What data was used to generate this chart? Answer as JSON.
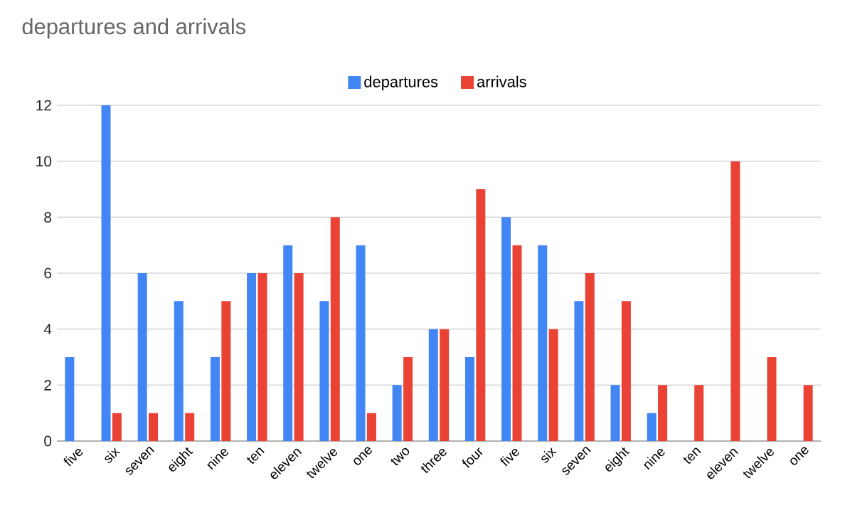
{
  "chart_data": {
    "type": "bar",
    "title": "departures and arrivals",
    "categories": [
      "five",
      "six",
      "seven",
      "eight",
      "nine",
      "ten",
      "eleven",
      "twelve",
      "one",
      "two",
      "three",
      "four",
      "five",
      "six",
      "seven",
      "eight",
      "nine",
      "ten",
      "eleven",
      "twelve",
      "one"
    ],
    "series": [
      {
        "name": "departures",
        "color": "#4285f4",
        "values": [
          3,
          12,
          6,
          5,
          3,
          6,
          7,
          5,
          7,
          2,
          4,
          3,
          8,
          7,
          5,
          2,
          1,
          null,
          null,
          null,
          null
        ]
      },
      {
        "name": "arrivals",
        "color": "#ea4335",
        "values": [
          null,
          1,
          1,
          1,
          5,
          6,
          6,
          8,
          1,
          3,
          4,
          9,
          7,
          4,
          6,
          5,
          2,
          2,
          10,
          3,
          2
        ]
      }
    ],
    "ylim": [
      0,
      12
    ],
    "yticks": [
      0,
      2,
      4,
      6,
      8,
      10,
      12
    ],
    "grid": "y",
    "legend": "top"
  }
}
